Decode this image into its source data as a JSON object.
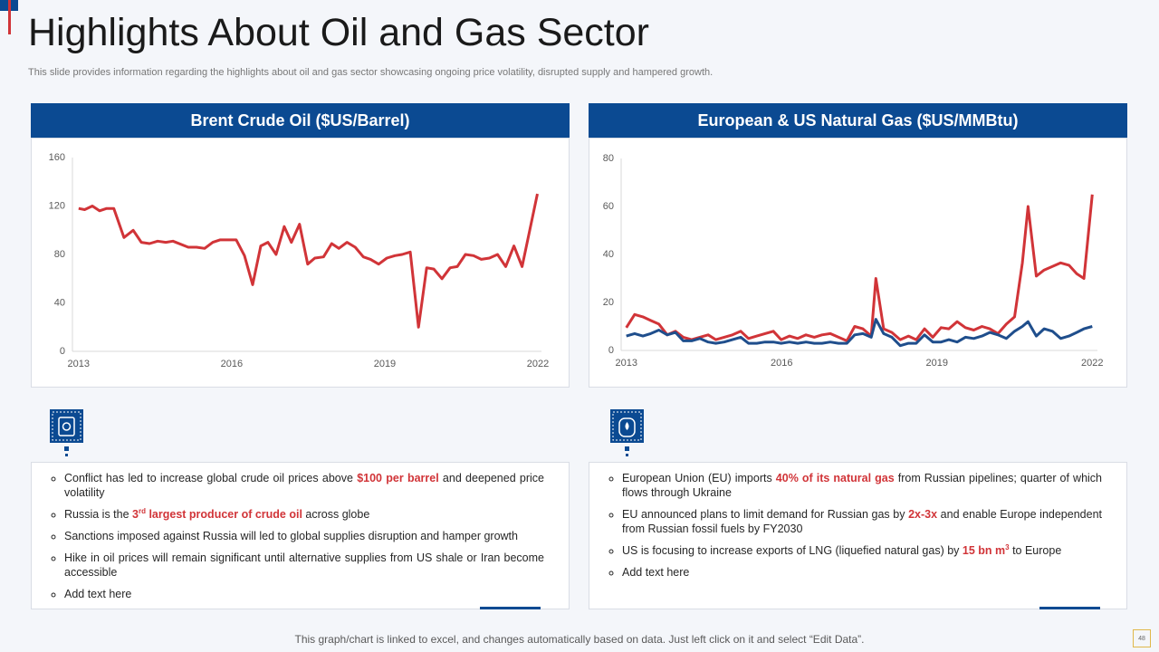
{
  "title": "Highlights About Oil and Gas Sector",
  "subtitle": "This slide provides information regarding the highlights about oil and gas sector showcasing ongoing price volatility, disrupted supply and hampered growth.",
  "footer": "This graph/chart is linked to excel,  and changes automatically based on data. Just left click on it and select “Edit Data”.",
  "page_number": "48",
  "chart_data": [
    {
      "type": "line",
      "title": "Brent Crude Oil ($US/Barrel)",
      "x": [
        2013.0,
        2013.12,
        2013.27,
        2013.41,
        2013.55,
        2013.69,
        2013.89,
        2014.07,
        2014.23,
        2014.39,
        2014.55,
        2014.71,
        2014.85,
        2015.15,
        2015.31,
        2015.47,
        2015.63,
        2015.77,
        2015.93,
        2016.09,
        2016.25,
        2016.41,
        2016.57,
        2016.71,
        2016.87,
        2017.03,
        2017.17,
        2017.33,
        2017.49,
        2017.63,
        2017.8,
        2017.96,
        2018.1,
        2018.26,
        2018.42,
        2018.58,
        2018.72,
        2018.88,
        2019.04,
        2019.2,
        2019.34,
        2019.5,
        2019.66,
        2019.82,
        2019.96,
        2020.12,
        2020.28,
        2020.42,
        2020.58,
        2020.74,
        2020.89,
        2021.05,
        2021.21,
        2021.37,
        2021.53,
        2021.69,
        2021.99
      ],
      "series": [
        {
          "color": "#d13438",
          "values": [
            118,
            117,
            120,
            116,
            118,
            118,
            94,
            100,
            90,
            89,
            91,
            90,
            91,
            86,
            86,
            85,
            90,
            92,
            92,
            92,
            79,
            55,
            87,
            90,
            80,
            103,
            90,
            105,
            72,
            77,
            78,
            89,
            85,
            90,
            86,
            78,
            76,
            72,
            77,
            79,
            80,
            82,
            20,
            69,
            68,
            60,
            69,
            70,
            80,
            79,
            76,
            77,
            80,
            70,
            87,
            70,
            130
          ]
        }
      ],
      "xlim": [
        2012.88,
        2022.07
      ],
      "ylim": [
        0,
        160
      ],
      "xticks": [
        2013,
        2016,
        2019,
        2022
      ],
      "yticks": [
        0,
        40,
        80,
        120,
        160
      ]
    },
    {
      "type": "line",
      "title": "European & US Natural Gas ($US/MMBtu)",
      "x": [
        2013.0,
        2013.16,
        2013.32,
        2013.47,
        2013.63,
        2013.79,
        2013.95,
        2014.1,
        2014.26,
        2014.42,
        2014.58,
        2014.73,
        2014.89,
        2015.05,
        2015.21,
        2015.36,
        2015.52,
        2015.68,
        2015.84,
        2015.99,
        2016.15,
        2016.31,
        2016.47,
        2016.63,
        2016.78,
        2016.94,
        2017.1,
        2017.26,
        2017.41,
        2017.57,
        2017.73,
        2017.82,
        2017.97,
        2018.13,
        2018.29,
        2018.45,
        2018.6,
        2018.76,
        2018.92,
        2019.08,
        2019.23,
        2019.39,
        2019.55,
        2019.71,
        2019.87,
        2020.02,
        2020.18,
        2020.34,
        2020.5,
        2020.65,
        2020.76,
        2020.92,
        2021.07,
        2021.23,
        2021.39,
        2021.55,
        2021.7,
        2021.84,
        2022.0
      ],
      "series": [
        {
          "color": "#d13438",
          "values": [
            9.5,
            15,
            14,
            12.5,
            11,
            6.5,
            8,
            5.5,
            4.5,
            5.5,
            6.5,
            4.5,
            5.5,
            6.5,
            8,
            5,
            6,
            7,
            8,
            4.5,
            6,
            5,
            6.5,
            5.5,
            6.5,
            7,
            5.5,
            4,
            10,
            9,
            6,
            30,
            9,
            7.5,
            4.5,
            6,
            4.5,
            9,
            5.5,
            9.5,
            9,
            12,
            9.5,
            8.5,
            10,
            9,
            7,
            11,
            14,
            36.5,
            60,
            31,
            33.5,
            35,
            36.5,
            35.5,
            32,
            30,
            65
          ]
        },
        {
          "color": "#1f4e8c",
          "values": [
            6,
            7,
            6,
            7,
            8.5,
            6.5,
            7.5,
            4,
            4,
            5,
            3.5,
            3,
            3.5,
            4.5,
            5.5,
            3,
            3,
            3.5,
            3.5,
            3,
            3.5,
            3,
            3.5,
            3,
            3,
            3.5,
            3,
            3,
            6.5,
            7,
            5.5,
            13,
            7,
            5.5,
            2,
            3,
            3,
            6.5,
            3.5,
            3.5,
            4.5,
            3.5,
            5.5,
            5,
            6,
            7.5,
            6.5,
            5,
            8,
            10,
            12,
            6,
            9,
            8,
            5,
            6,
            7.5,
            9,
            10
          ]
        }
      ],
      "xlim": [
        2012.9,
        2022.1
      ],
      "ylim": [
        0,
        80
      ],
      "xticks": [
        2013,
        2016,
        2019,
        2022
      ],
      "yticks": [
        0,
        20,
        40,
        60,
        80
      ]
    }
  ],
  "bullets": [
    [
      [
        {
          "text": "Conflict has led to increase global crude oil prices above ",
          "style": "normal"
        },
        {
          "text": "$100 per barrel",
          "style": "red"
        },
        {
          "text": " and deepened price volatility",
          "style": "normal"
        }
      ],
      [
        {
          "text": "Russia is the ",
          "style": "normal"
        },
        {
          "text": "3",
          "style": "red"
        },
        {
          "text": "rd",
          "style": "red-sup"
        },
        {
          "text": " largest producer of crude oil",
          "style": "red"
        },
        {
          "text": " across globe",
          "style": "normal"
        }
      ],
      [
        {
          "text": "Sanctions imposed against Russia will led to global supplies disruption and hamper growth",
          "style": "normal"
        }
      ],
      [
        {
          "text": "Hike in oil prices will remain significant until alternative  supplies from US shale or Iran become accessible",
          "style": "normal"
        }
      ],
      [
        {
          "text": "Add text here",
          "style": "normal"
        }
      ]
    ],
    [
      [
        {
          "text": "European Union (EU) imports ",
          "style": "normal"
        },
        {
          "text": "40% of its natural gas",
          "style": "red"
        },
        {
          "text": " from Russian pipelines; quarter of which flows through Ukraine",
          "style": "normal"
        }
      ],
      [
        {
          "text": "EU announced  plans to limit demand for Russian gas by ",
          "style": "normal"
        },
        {
          "text": "2x-3x",
          "style": "red"
        },
        {
          "text": " and enable Europe independent  from  Russian fossil fuels by FY2030",
          "style": "normal"
        }
      ],
      [
        {
          "text": "US is focusing to increase exports of LNG (liquefied natural gas) by ",
          "style": "normal"
        },
        {
          "text": "15 bn m",
          "style": "red"
        },
        {
          "text": "3",
          "style": "red-sup"
        },
        {
          "text": " to Europe",
          "style": "normal"
        }
      ],
      [
        {
          "text": "Add text here",
          "style": "normal"
        }
      ]
    ]
  ]
}
